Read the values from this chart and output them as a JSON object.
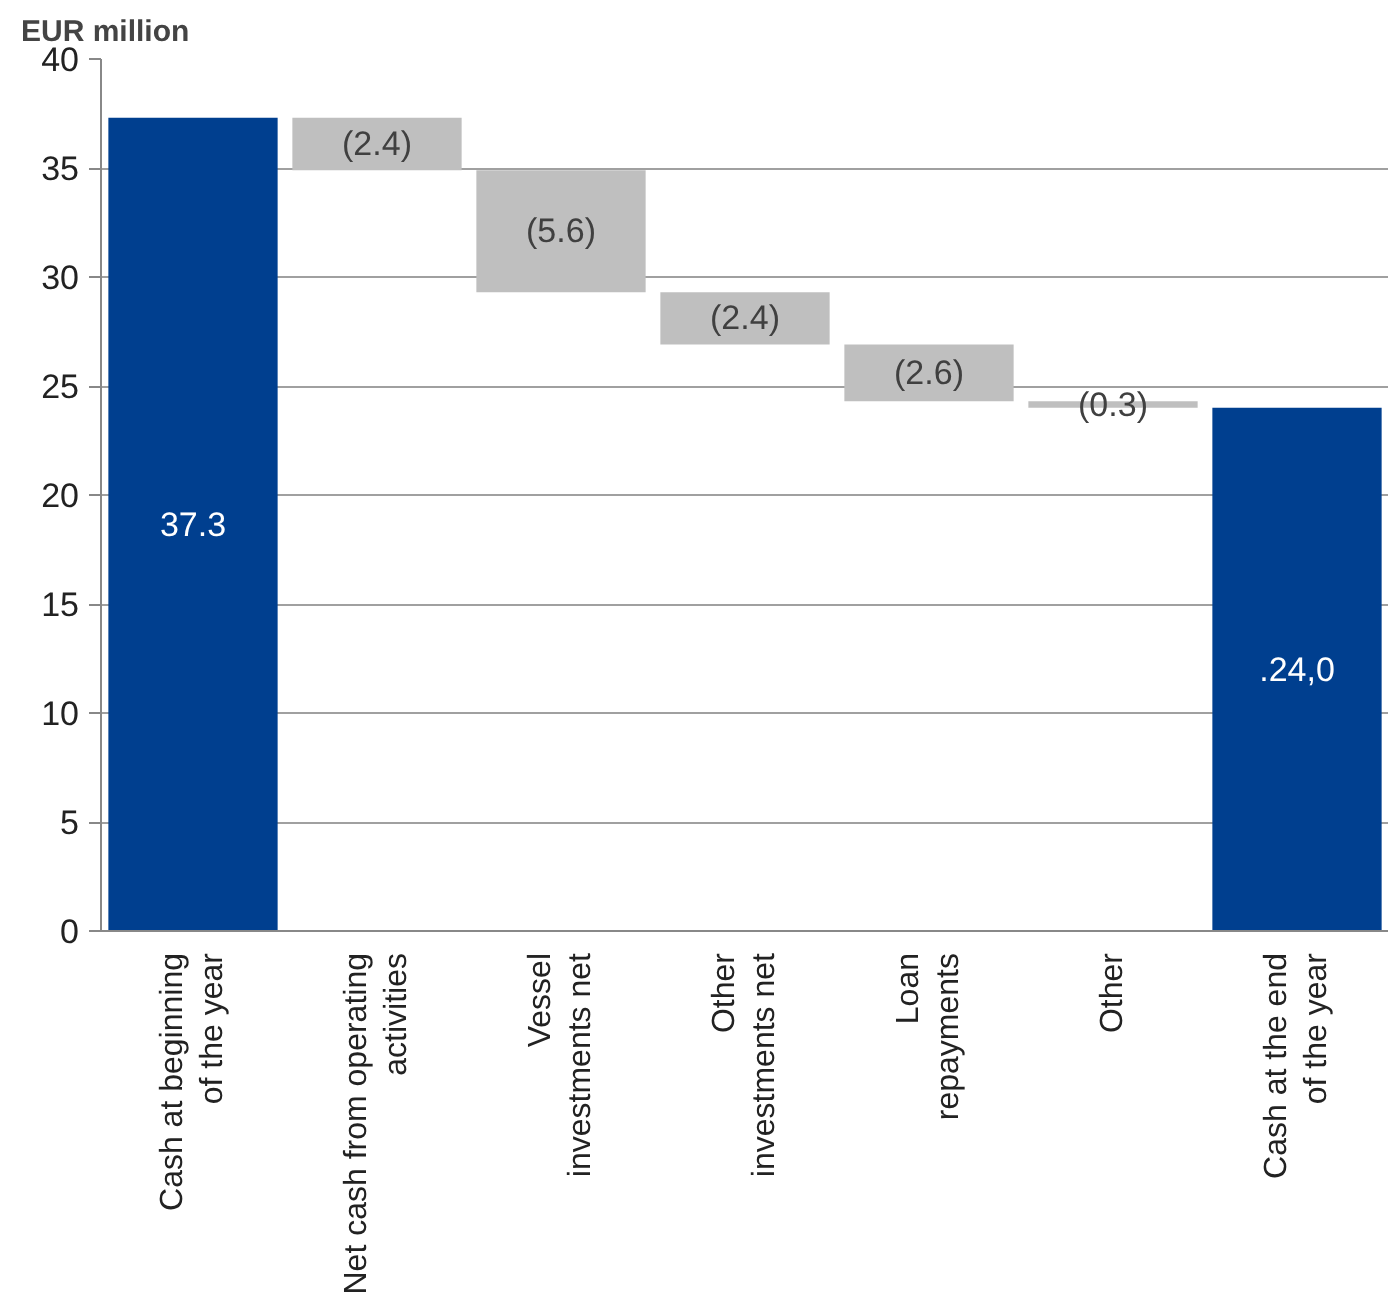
{
  "chart_data": {
    "type": "bar",
    "ylabel": "EUR million",
    "categories": [
      "Cash at beginning\nof the year",
      "Net cash from operating\nactivities",
      "Vessel\ninvestments net",
      "Other\ninvestments net",
      "Loan\nrepayments",
      "Other",
      "Cash at the end\nof the year"
    ],
    "base": [
      0,
      37.3,
      34.9,
      29.3,
      26.9,
      24.3,
      0
    ],
    "values": [
      37.3,
      -2.4,
      -5.6,
      -2.4,
      -2.6,
      -0.3,
      24.0
    ],
    "value_labels": [
      "37.3",
      "(2.4)",
      "(5.6)",
      "(2.4)",
      "(2.6)",
      "(0.3)",
      ".24,0"
    ],
    "colors": [
      "#003f8f",
      "#bfbfbf",
      "#bfbfbf",
      "#bfbfbf",
      "#bfbfbf",
      "#bfbfbf",
      "#003f8f"
    ],
    "ylim": [
      0,
      40
    ],
    "yticks": [
      0,
      5,
      10,
      15,
      20,
      25,
      30,
      35,
      40
    ],
    "grid": "y"
  }
}
